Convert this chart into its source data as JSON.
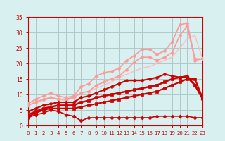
{
  "ylabel": "",
  "xlim": [
    0,
    23
  ],
  "ylim": [
    0,
    35
  ],
  "xticks": [
    0,
    1,
    2,
    3,
    4,
    5,
    6,
    7,
    8,
    9,
    10,
    11,
    12,
    13,
    14,
    15,
    16,
    17,
    18,
    19,
    20,
    21,
    22,
    23
  ],
  "yticks": [
    0,
    5,
    10,
    15,
    20,
    25,
    30,
    35
  ],
  "bg_color": "#d8f0f0",
  "grid_color": "#b0c8c8",
  "lines": [
    {
      "x": [
        0,
        1,
        2,
        3,
        4,
        5,
        6,
        7,
        8,
        9,
        10,
        11,
        12,
        13,
        14,
        15,
        16,
        17,
        18,
        19,
        20,
        21,
        22,
        23
      ],
      "y": [
        2.5,
        3.5,
        4.0,
        5.0,
        4.5,
        3.5,
        3.0,
        1.5,
        2.5,
        2.5,
        2.5,
        2.5,
        2.5,
        2.5,
        2.5,
        2.5,
        2.5,
        3.0,
        3.0,
        3.0,
        3.0,
        3.0,
        2.5,
        2.5
      ],
      "color": "#cc0000",
      "lw": 1.2,
      "marker": "D",
      "ms": 2.5,
      "zorder": 5
    },
    {
      "x": [
        0,
        1,
        2,
        3,
        4,
        5,
        6,
        7,
        8,
        9,
        10,
        11,
        12,
        13,
        14,
        15,
        16,
        17,
        18,
        19,
        20,
        21,
        22,
        23
      ],
      "y": [
        3.0,
        4.0,
        5.0,
        5.5,
        5.5,
        5.5,
        5.5,
        6.0,
        6.5,
        7.0,
        7.5,
        8.0,
        8.5,
        9.0,
        9.5,
        10.0,
        10.5,
        11.0,
        12.0,
        13.0,
        14.0,
        15.0,
        15.0,
        9.0
      ],
      "color": "#cc0000",
      "lw": 1.5,
      "marker": "s",
      "ms": 2.5,
      "zorder": 5
    },
    {
      "x": [
        0,
        1,
        2,
        3,
        4,
        5,
        6,
        7,
        8,
        9,
        10,
        11,
        12,
        13,
        14,
        15,
        16,
        17,
        18,
        19,
        20,
        21,
        22,
        23
      ],
      "y": [
        3.5,
        4.5,
        5.5,
        6.0,
        6.5,
        6.5,
        6.5,
        7.5,
        8.0,
        9.0,
        9.5,
        10.0,
        10.5,
        11.0,
        11.5,
        12.0,
        12.5,
        13.0,
        14.0,
        15.0,
        15.5,
        15.5,
        13.0,
        9.0
      ],
      "color": "#cc0000",
      "lw": 1.8,
      "marker": "s",
      "ms": 2.5,
      "zorder": 5
    },
    {
      "x": [
        0,
        1,
        2,
        3,
        4,
        5,
        6,
        7,
        8,
        9,
        10,
        11,
        12,
        13,
        14,
        15,
        16,
        17,
        18,
        19,
        20,
        21,
        22,
        23
      ],
      "y": [
        4.5,
        5.5,
        6.5,
        7.0,
        7.5,
        7.5,
        7.5,
        9.0,
        9.5,
        10.5,
        11.5,
        12.5,
        13.5,
        14.5,
        14.5,
        14.5,
        15.0,
        15.5,
        16.5,
        16.0,
        15.5,
        16.0,
        13.0,
        8.5
      ],
      "color": "#cc0000",
      "lw": 1.5,
      "marker": "D",
      "ms": 2.5,
      "zorder": 6
    },
    {
      "x": [
        0,
        1,
        2,
        3,
        4,
        5,
        6,
        7,
        8,
        9,
        10,
        11,
        12,
        13,
        14,
        15,
        16,
        17,
        18,
        19,
        20,
        21,
        22,
        23
      ],
      "y": [
        6.5,
        7.5,
        8.5,
        9.0,
        8.5,
        8.5,
        9.0,
        10.5,
        11.0,
        13.0,
        14.0,
        15.0,
        16.0,
        18.0,
        20.5,
        22.0,
        22.0,
        21.0,
        22.0,
        23.5,
        29.0,
        32.0,
        21.0,
        21.5
      ],
      "color": "#ff9999",
      "lw": 1.2,
      "marker": "D",
      "ms": 2.5,
      "zorder": 4
    },
    {
      "x": [
        0,
        1,
        2,
        3,
        4,
        5,
        6,
        7,
        8,
        9,
        10,
        11,
        12,
        13,
        14,
        15,
        16,
        17,
        18,
        19,
        20,
        21,
        22,
        23
      ],
      "y": [
        7.0,
        8.5,
        9.5,
        10.5,
        9.5,
        9.0,
        9.5,
        12.5,
        13.5,
        16.0,
        17.0,
        17.5,
        18.5,
        21.0,
        22.5,
        24.5,
        24.5,
        23.0,
        24.0,
        27.0,
        32.5,
        33.0,
        21.5,
        21.5
      ],
      "color": "#ff9999",
      "lw": 1.2,
      "marker": "D",
      "ms": 2.5,
      "zorder": 3
    },
    {
      "x": [
        0,
        1,
        2,
        3,
        4,
        5,
        6,
        7,
        8,
        9,
        10,
        11,
        12,
        13,
        14,
        15,
        16,
        17,
        18,
        19,
        20,
        21,
        22,
        23
      ],
      "y": [
        6.5,
        7.5,
        8.0,
        9.0,
        8.5,
        8.0,
        9.0,
        10.5,
        11.0,
        12.0,
        13.0,
        14.0,
        15.5,
        16.5,
        17.5,
        18.5,
        19.0,
        20.0,
        21.0,
        22.0,
        25.0,
        28.0,
        29.0,
        21.5
      ],
      "color": "#ffbbbb",
      "lw": 1.0,
      "marker": null,
      "ms": 0,
      "zorder": 2
    }
  ],
  "arrow_color": "#cc0000",
  "tick_color": "#cc0000",
  "label_color": "#cc0000",
  "axis_color": "#cc0000"
}
